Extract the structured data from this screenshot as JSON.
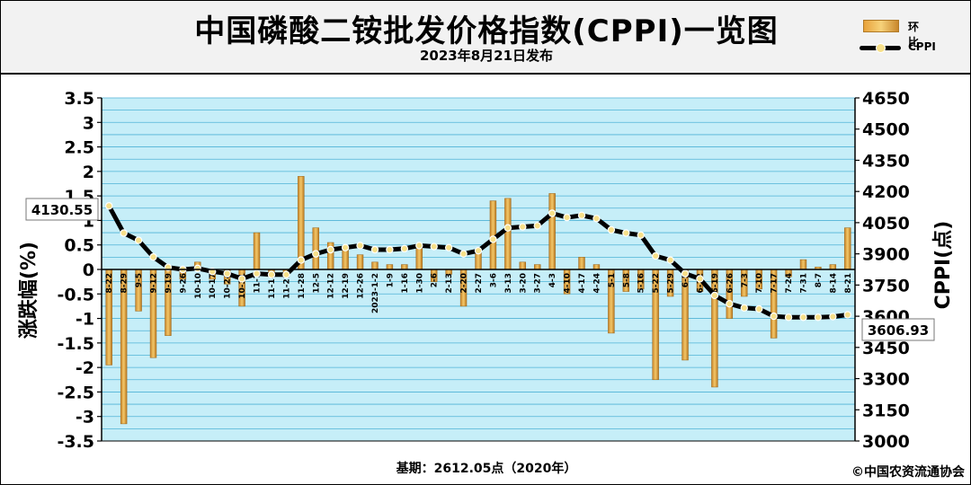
{
  "header": {
    "title": "中国磷酸二铵批发价格指数(CPPI)一览图",
    "subtitle": "2023年8月21日发布"
  },
  "footer": {
    "basis": "基期：2612.05点（2020年）",
    "copyright": "©中国农资流通协会"
  },
  "chart_data": {
    "type": "bar",
    "legend": [
      {
        "name": "环比",
        "kind": "bar"
      },
      {
        "name": "CPPI",
        "kind": "line"
      }
    ],
    "legend_position": "top-right",
    "ylabel_left": "涨跌幅(%)",
    "ylabel_right": "CPPI(点)",
    "y_left_range": [
      -3.5,
      3.5
    ],
    "y_left_ticks": [
      "3.5",
      "3",
      "2.5",
      "2",
      "1.5",
      "1",
      "0.5",
      "0",
      "-0.5",
      "-1",
      "-1.5",
      "-2",
      "-2.5",
      "-3",
      "-3.5"
    ],
    "y_right_range": [
      3000,
      4650
    ],
    "y_right_ticks": [
      "4650",
      "4500",
      "4350",
      "4200",
      "4050",
      "3900",
      "3750",
      "3600",
      "3450",
      "3300",
      "3150",
      "3000"
    ],
    "grid": true,
    "categories": [
      "8-22",
      "8-29",
      "9-5",
      "9-12",
      "9-19",
      "9-26",
      "10-10",
      "10-17",
      "10-24",
      "10-31",
      "11-7",
      "11-14",
      "11-21",
      "11-28",
      "12-5",
      "12-12",
      "12-19",
      "12-26",
      "2023-1-2",
      "1-9",
      "1-16",
      "1-30",
      "2-6",
      "2-13",
      "2-20",
      "2-27",
      "3-6",
      "3-13",
      "3-20",
      "3-27",
      "4-3",
      "4-10",
      "4-17",
      "4-24",
      "5-1",
      "5-8",
      "5-16",
      "5-22",
      "5-29",
      "6-5",
      "6-12",
      "6-19",
      "6-26",
      "7-3",
      "7-10",
      "7-17",
      "7-24",
      "7-31",
      "8-7",
      "8-14",
      "8-21"
    ],
    "tick_labels": [
      "8-22",
      "8-29",
      "9-5",
      "9-12",
      "9-19",
      "9-26",
      "10-10",
      "10-17",
      "10-24",
      "10-31",
      "11-7",
      "11-14",
      "11-21",
      "11-28",
      "12-5",
      "12-12",
      "12-19",
      "12-26",
      "2023-1-2",
      "1-9",
      "1-16",
      "1-30",
      "2-6",
      "2-13",
      "2-20",
      "2-27",
      "3-6",
      "3-13",
      "3-20",
      "3-27",
      "4-3",
      "4-10",
      "4-17",
      "4-24",
      "5-1",
      "5-8",
      "5-16",
      "5-22",
      "5-29",
      "6-5",
      "6-12",
      "6-19",
      "6-26",
      "7-3",
      "7-10",
      "7-17",
      "7-24",
      "7-31",
      "8-7",
      "8-14",
      "8-21"
    ],
    "series": [
      {
        "name": "环比",
        "type": "bar",
        "axis": "left",
        "values": [
          -1.95,
          -3.15,
          -0.85,
          -1.8,
          -1.35,
          -0.2,
          0.15,
          -0.2,
          -0.3,
          -0.75,
          0.75,
          -0.15,
          -0.15,
          1.9,
          0.85,
          0.55,
          0.4,
          0.3,
          0.15,
          0.1,
          0.1,
          0.5,
          -0.25,
          -0.1,
          -0.75,
          0.4,
          1.4,
          1.45,
          0.15,
          0.1,
          1.55,
          -0.5,
          0.25,
          0.1,
          -1.3,
          -0.45,
          -0.4,
          -2.25,
          -0.55,
          -1.85,
          -0.45,
          -2.4,
          -1.0,
          -0.55,
          -0.4,
          -1.4,
          -0.15,
          0.2,
          0.05,
          0.1,
          0.85
        ]
      },
      {
        "name": "CPPI",
        "type": "line",
        "axis": "right",
        "values": [
          4130.55,
          4000,
          3965,
          3885,
          3835,
          3825,
          3830,
          3815,
          3805,
          3780,
          3805,
          3800,
          3800,
          3870,
          3900,
          3920,
          3930,
          3940,
          3920,
          3920,
          3925,
          3940,
          3935,
          3930,
          3900,
          3915,
          3970,
          4025,
          4030,
          4035,
          4095,
          4075,
          4085,
          4070,
          4015,
          4000,
          3990,
          3890,
          3870,
          3805,
          3780,
          3700,
          3660,
          3640,
          3635,
          3600,
          3595,
          3595,
          3595,
          3598,
          3606.93
        ]
      }
    ],
    "callouts": {
      "first": "4130.55",
      "last": "3606.93"
    }
  }
}
